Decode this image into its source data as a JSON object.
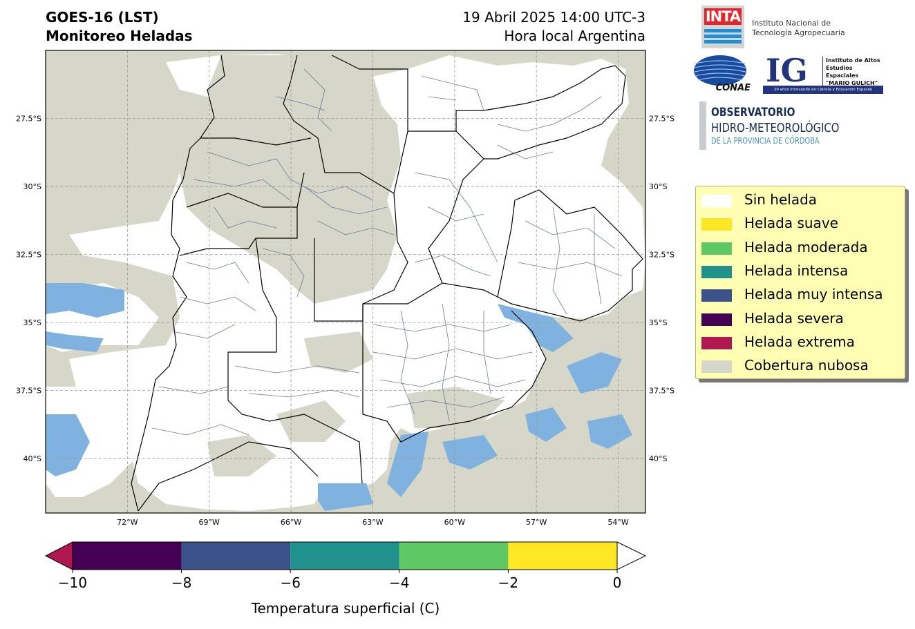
{
  "title": {
    "line1": "GOES-16 (LST)",
    "line2": "Monitoreo Heladas"
  },
  "datetime": {
    "line1": "19 Abril 2025 14:00 UTC-3",
    "line2": "Hora local Argentina"
  },
  "map": {
    "lon_range": [
      -75,
      -53
    ],
    "lat_range": [
      -42,
      -25
    ],
    "x_ticks": [
      "72°W",
      "69°W",
      "66°W",
      "63°W",
      "60°W",
      "57°W",
      "54°W"
    ],
    "x_tick_values": [
      -72,
      -69,
      -66,
      -63,
      -60,
      -57,
      -54
    ],
    "y_ticks": [
      "27.5°S",
      "30°S",
      "32.5°S",
      "35°S",
      "37.5°S",
      "40°S"
    ],
    "y_tick_values": [
      -27.5,
      -30,
      -32.5,
      -35,
      -37.5,
      -40
    ],
    "grid": true,
    "colors": {
      "cloud": "#d6d6c9",
      "no_frost": "#ffffff",
      "water_cold": "#7fb2de",
      "border_province": "#000000",
      "border_department": "#6a7b95"
    }
  },
  "logos": {
    "inta": {
      "mark": "INTA",
      "line1": "Instituto Nacional de",
      "line2": "Tecnología Agropecuaria"
    },
    "conae": "CONAE",
    "ig": {
      "mark": "IG",
      "line1": "Instituto de Altos",
      "line2": "Estudios Espaciales",
      "line3": "\"MARIO GULICH\"",
      "strip": "20 años innovando en Ciencia y Educación Espacial"
    },
    "observatorio": {
      "line1": "OBSERVATORIO",
      "line2": "HIDRO-METEOROLÓGICO",
      "line3": "DE LA PROVINCIA DE CÓRDOBA"
    }
  },
  "legend": [
    {
      "label": "Sin helada",
      "color": "#ffffff"
    },
    {
      "label": "Helada suave",
      "color": "#fde725"
    },
    {
      "label": "Helada moderada",
      "color": "#5ec962"
    },
    {
      "label": "Helada intensa",
      "color": "#21918c"
    },
    {
      "label": "Helada muy intensa",
      "color": "#3b528b"
    },
    {
      "label": "Helada severa",
      "color": "#440154"
    },
    {
      "label": "Helada extrema",
      "color": "#b0164f"
    },
    {
      "label": "Cobertura nubosa",
      "color": "#d6d6c9"
    }
  ],
  "colorbar": {
    "label": "Temperatura superficial (C)",
    "ticks": [
      "−10",
      "−8",
      "−6",
      "−4",
      "−2",
      "0"
    ],
    "tick_values": [
      -10,
      -8,
      -6,
      -4,
      -2,
      0
    ],
    "segments": [
      {
        "from": -10,
        "to": -8,
        "color": "#440154"
      },
      {
        "from": -8,
        "to": -6,
        "color": "#3b528b"
      },
      {
        "from": -6,
        "to": -4,
        "color": "#21918c"
      },
      {
        "from": -4,
        "to": -2,
        "color": "#5ec962"
      },
      {
        "from": -2,
        "to": 0,
        "color": "#fde725"
      }
    ],
    "under_color": "#b0164f",
    "over_color": "#ffffff"
  }
}
